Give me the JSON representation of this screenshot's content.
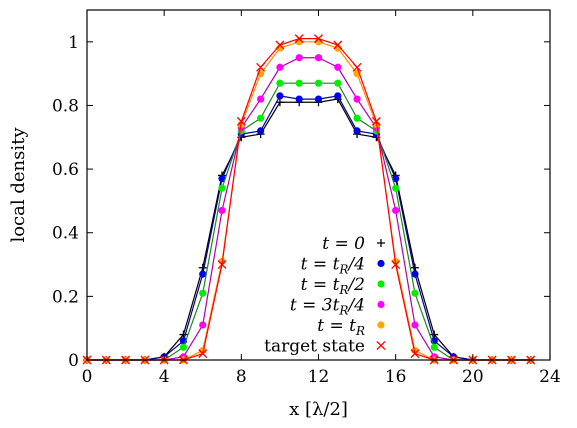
{
  "chart_data": {
    "type": "line",
    "title": "",
    "xlabel": "x [λ/2]",
    "ylabel": "local density",
    "xlim": [
      0,
      24
    ],
    "ylim": [
      0,
      1.1
    ],
    "xticks": [
      0,
      4,
      8,
      12,
      16,
      20,
      24
    ],
    "yticks": [
      0,
      0.2,
      0.4,
      0.6,
      0.8,
      1
    ],
    "grid": false,
    "legend_position": "bottom-right",
    "x": [
      0,
      1,
      2,
      3,
      4,
      5,
      6,
      7,
      8,
      9,
      10,
      11,
      12,
      13,
      14,
      15,
      16,
      17,
      18,
      19,
      20,
      21,
      22,
      23
    ],
    "series": [
      {
        "name": "t = 0",
        "line_color": "#000000",
        "marker": "plus",
        "marker_color": "#000000",
        "values": [
          0,
          0,
          0,
          0,
          0.01,
          0.08,
          0.29,
          0.58,
          0.7,
          0.71,
          0.81,
          0.81,
          0.81,
          0.82,
          0.71,
          0.7,
          0.58,
          0.29,
          0.08,
          0.01,
          0,
          0,
          0,
          0
        ]
      },
      {
        "name": "t = t_R/4",
        "line_color": "#00008b",
        "marker": "dot",
        "marker_color": "#0000ee",
        "values": [
          0,
          0,
          0,
          0,
          0.01,
          0.06,
          0.27,
          0.57,
          0.71,
          0.72,
          0.83,
          0.82,
          0.82,
          0.83,
          0.72,
          0.71,
          0.57,
          0.27,
          0.06,
          0.01,
          0,
          0,
          0,
          0
        ]
      },
      {
        "name": "t = t_R/2",
        "line_color": "#1a8a1a",
        "marker": "dot",
        "marker_color": "#00ee00",
        "values": [
          0,
          0,
          0,
          0,
          0,
          0.04,
          0.21,
          0.54,
          0.72,
          0.76,
          0.87,
          0.87,
          0.87,
          0.87,
          0.76,
          0.72,
          0.54,
          0.21,
          0.04,
          0,
          0,
          0,
          0,
          0
        ]
      },
      {
        "name": "t = 3t_R/4",
        "line_color": "#b000b0",
        "marker": "dot",
        "marker_color": "#ff00ff",
        "values": [
          0,
          0,
          0,
          0,
          0,
          0.01,
          0.11,
          0.47,
          0.73,
          0.82,
          0.92,
          0.95,
          0.95,
          0.92,
          0.82,
          0.73,
          0.47,
          0.11,
          0.01,
          0,
          0,
          0,
          0,
          0
        ]
      },
      {
        "name": "t = t_R",
        "line_color": "#ff8c00",
        "marker": "dot",
        "marker_color": "#ffa500",
        "values": [
          0,
          0,
          0,
          0,
          0,
          0,
          0.03,
          0.31,
          0.74,
          0.9,
          0.98,
          1.0,
          1.0,
          0.98,
          0.9,
          0.74,
          0.31,
          0.03,
          0,
          0,
          0,
          0,
          0,
          0
        ]
      },
      {
        "name": "target state",
        "line_color": "#ff0000",
        "marker": "cross",
        "marker_color": "#ff0000",
        "values": [
          0,
          0,
          0,
          0,
          0,
          0,
          0.02,
          0.3,
          0.75,
          0.92,
          0.99,
          1.01,
          1.01,
          0.99,
          0.92,
          0.75,
          0.3,
          0.02,
          0,
          0,
          0,
          0,
          0,
          0
        ]
      }
    ]
  }
}
